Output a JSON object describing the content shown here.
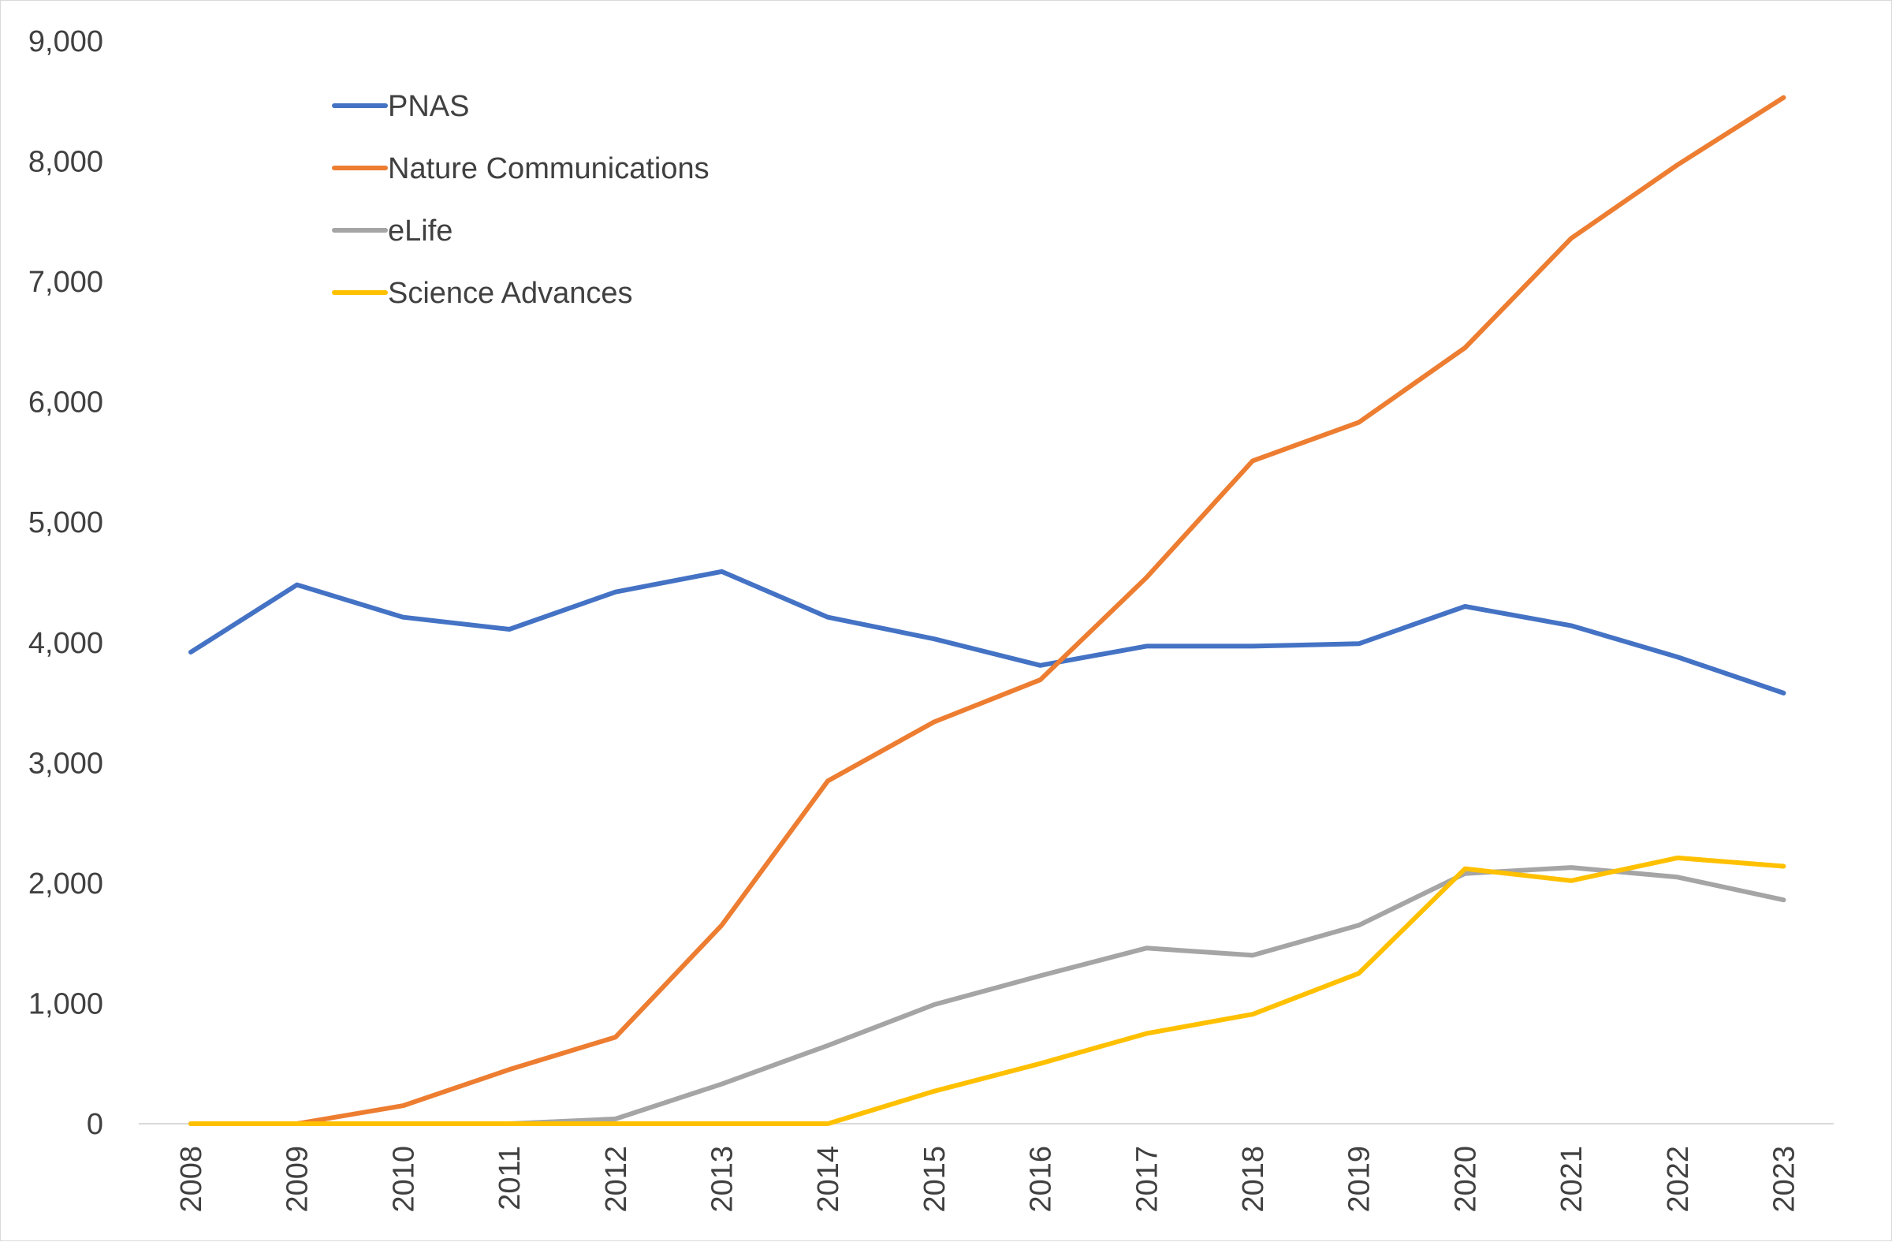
{
  "chart_data": {
    "type": "line",
    "title": "",
    "xlabel": "",
    "ylabel": "",
    "categories": [
      "2008",
      "2009",
      "2010",
      "2011",
      "2012",
      "2013",
      "2014",
      "2015",
      "2016",
      "2017",
      "2018",
      "2019",
      "2020",
      "2021",
      "2022",
      "2023"
    ],
    "ylim": [
      0,
      9000
    ],
    "y_ticks": [
      0,
      1000,
      2000,
      3000,
      4000,
      5000,
      6000,
      7000,
      8000,
      9000
    ],
    "y_tick_labels": [
      "0",
      "1,000",
      "2,000",
      "3,000",
      "4,000",
      "5,000",
      "6,000",
      "7,000",
      "8,000",
      "9,000"
    ],
    "grid": false,
    "legend_position": "top-left",
    "series": [
      {
        "name": "PNAS",
        "color": "#4472C4",
        "values": [
          3920,
          4480,
          4210,
          4110,
          4420,
          4590,
          4210,
          4030,
          3810,
          3970,
          3970,
          3990,
          4300,
          4140,
          3880,
          3580
        ]
      },
      {
        "name": "Nature Communications",
        "color": "#ED7D31",
        "values": [
          0,
          0,
          150,
          450,
          720,
          1650,
          2850,
          3340,
          3690,
          4540,
          5510,
          5830,
          6450,
          7360,
          7970,
          8530
        ]
      },
      {
        "name": "eLife",
        "color": "#A5A5A5",
        "values": [
          0,
          0,
          0,
          0,
          40,
          330,
          650,
          990,
          1230,
          1460,
          1400,
          1650,
          2080,
          2130,
          2050,
          1860
        ]
      },
      {
        "name": "Science Advances",
        "color": "#FFC000",
        "values": [
          0,
          0,
          0,
          0,
          0,
          0,
          0,
          270,
          500,
          750,
          910,
          1250,
          2120,
          2020,
          2210,
          2140
        ]
      }
    ]
  }
}
